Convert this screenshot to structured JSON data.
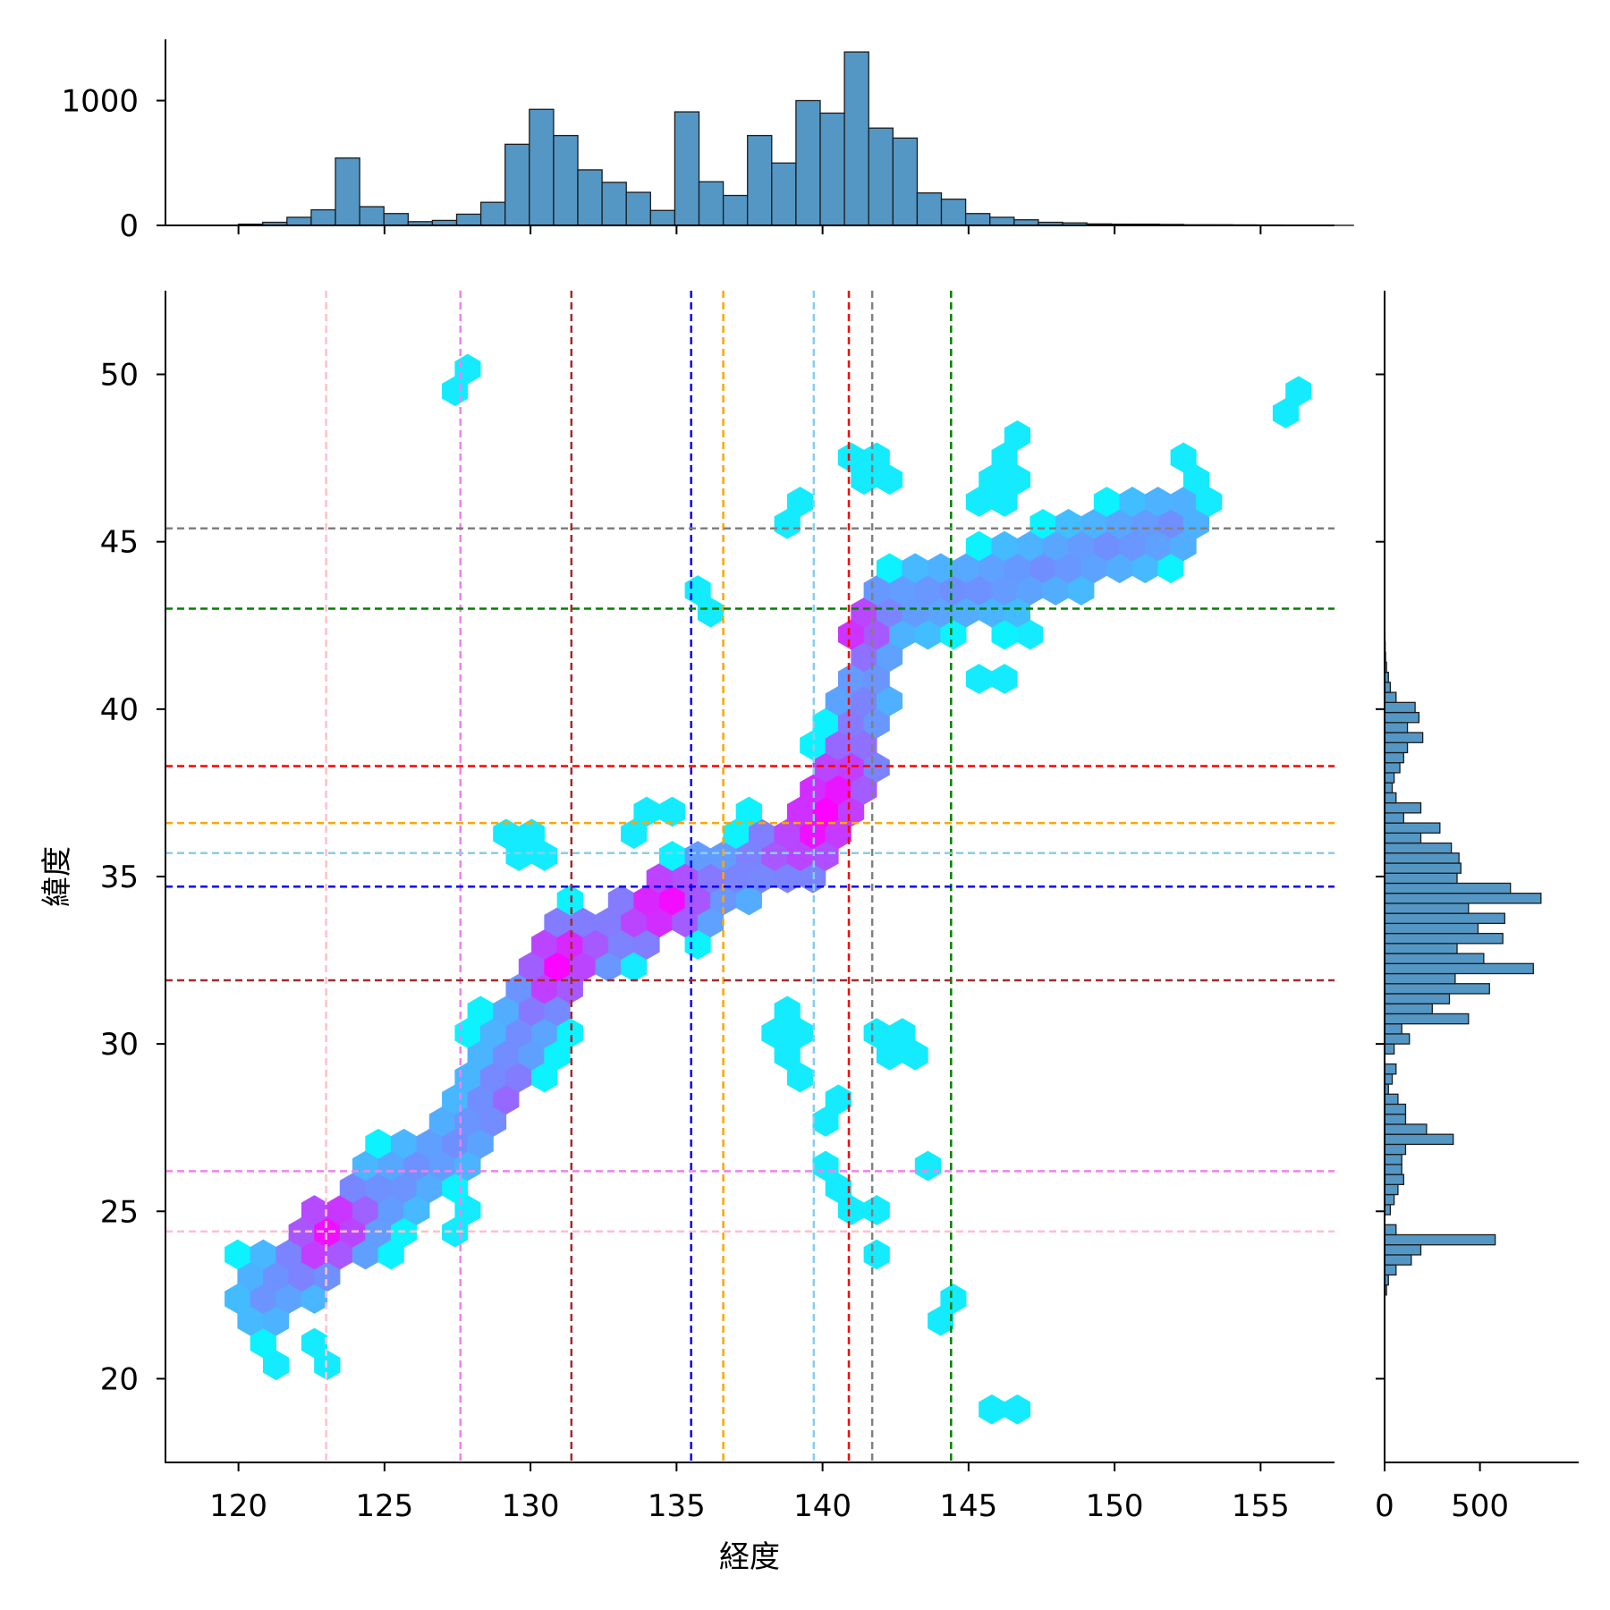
{
  "chart_data": {
    "type": "hexbin",
    "xlabel": "経度",
    "ylabel": "緯度",
    "xlim": [
      117.5,
      157.5
    ],
    "ylim": [
      17.5,
      52.5
    ],
    "x_ticks": [
      120,
      125,
      130,
      135,
      140,
      145,
      150,
      155
    ],
    "y_ticks": [
      20,
      25,
      30,
      35,
      40,
      45,
      50
    ],
    "colormap": [
      "#00ffff",
      "#ff00ff"
    ],
    "vlines": [
      {
        "x": 123.0,
        "color": "#ffc0cb"
      },
      {
        "x": 127.6,
        "color": "#ee82ee"
      },
      {
        "x": 131.4,
        "color": "#a52a2a"
      },
      {
        "x": 135.5,
        "color": "#0000ff"
      },
      {
        "x": 136.6,
        "color": "#ffa500"
      },
      {
        "x": 139.7,
        "color": "#87ceeb"
      },
      {
        "x": 140.9,
        "color": "#ff0000"
      },
      {
        "x": 141.7,
        "color": "#808080"
      },
      {
        "x": 144.4,
        "color": "#008000"
      }
    ],
    "hlines": [
      {
        "y": 24.4,
        "color": "#ffc0cb"
      },
      {
        "y": 26.2,
        "color": "#ee82ee"
      },
      {
        "y": 31.9,
        "color": "#a52a2a"
      },
      {
        "y": 34.7,
        "color": "#0000ff"
      },
      {
        "y": 35.7,
        "color": "#87ceeb"
      },
      {
        "y": 36.6,
        "color": "#ffa500"
      },
      {
        "y": 38.3,
        "color": "#ff0000"
      },
      {
        "y": 43.0,
        "color": "#008000"
      },
      {
        "y": 45.4,
        "color": "#808080"
      }
    ],
    "top_histogram": {
      "bin_width": 0.83,
      "x_start": 120.0,
      "yticks": [
        0,
        1000
      ],
      "counts": [
        10,
        25,
        65,
        125,
        540,
        150,
        95,
        30,
        40,
        90,
        185,
        650,
        930,
        720,
        445,
        345,
        265,
        120,
        910,
        350,
        240,
        720,
        500,
        1000,
        900,
        1390,
        780,
        700,
        260,
        210,
        95,
        65,
        45,
        25,
        20,
        12,
        10,
        10,
        8,
        5,
        5,
        4,
        3,
        2,
        2,
        1
      ]
    },
    "right_histogram": {
      "bin_width": 0.3,
      "y_start": 22.5,
      "xticks": [
        0,
        500
      ],
      "counts": [
        10,
        20,
        60,
        140,
        190,
        580,
        60,
        0,
        30,
        50,
        70,
        100,
        90,
        90,
        110,
        360,
        220,
        110,
        110,
        70,
        20,
        40,
        60,
        0,
        50,
        130,
        90,
        440,
        250,
        340,
        550,
        370,
        780,
        520,
        380,
        620,
        490,
        630,
        440,
        820,
        660,
        380,
        400,
        390,
        350,
        190,
        290,
        100,
        190,
        60,
        40,
        50,
        80,
        100,
        120,
        200,
        120,
        180,
        160,
        60,
        30,
        20,
        10,
        5,
        3,
        2,
        1
      ]
    }
  }
}
